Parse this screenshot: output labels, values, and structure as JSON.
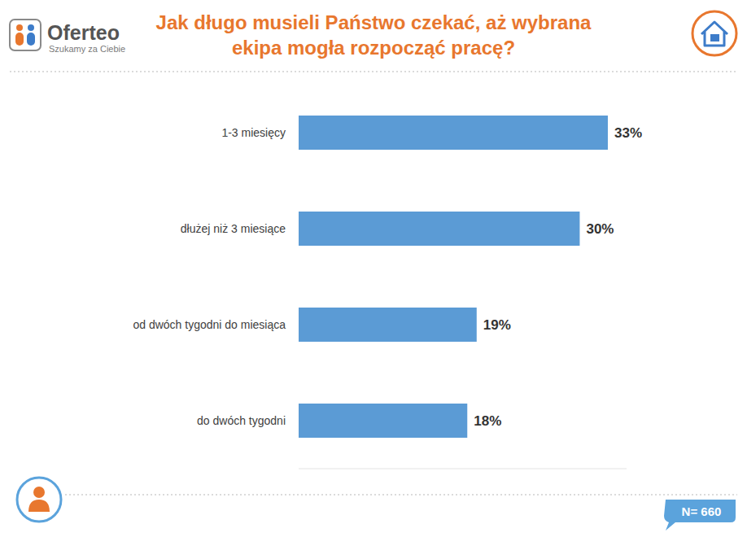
{
  "header": {
    "brand": "Oferteo",
    "tagline": "Szukamy za Ciebie"
  },
  "chart_data": {
    "type": "bar",
    "orientation": "horizontal",
    "title": "Jak długo musieli Państwo czekać, aż wybrana ekipa mogła rozpocząć pracę?",
    "categories": [
      "1-3 miesięcy",
      "dłużej niż 3 miesiące",
      "od dwóch tygodni do miesiąca",
      "do dwóch tygodni"
    ],
    "values": [
      33,
      30,
      19,
      18
    ],
    "value_labels": [
      "33%",
      "30%",
      "19%",
      "18%"
    ],
    "color": "#5b9bd5",
    "xlim": [
      0,
      35
    ],
    "data_labels": true,
    "tick_labels": false,
    "grid": false,
    "annotations": [
      "N= 660"
    ]
  }
}
